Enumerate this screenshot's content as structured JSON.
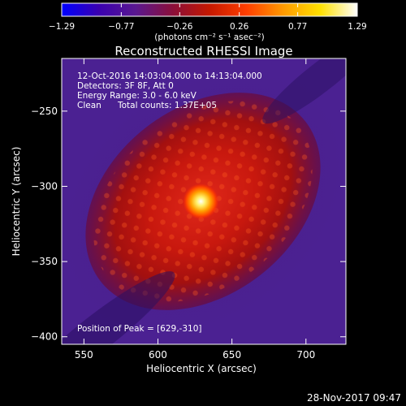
{
  "chart_data": {
    "type": "heatmap",
    "title": "Reconstructed RHESSI Image",
    "xlabel": "Heliocentric X (arcsec)",
    "ylabel": "Heliocentric Y (arcsec)",
    "xlim": [
      535,
      727
    ],
    "ylim": [
      -405,
      -215
    ],
    "x_ticks": [
      550,
      600,
      650,
      700
    ],
    "y_ticks": [
      -250,
      -300,
      -350,
      -400
    ],
    "x_tick_labels": [
      "550",
      "600",
      "650",
      "700"
    ],
    "y_tick_labels": [
      "−250",
      "−300",
      "−350",
      "−400"
    ],
    "colorbar": {
      "range": [
        -1.29,
        1.29
      ],
      "ticks": [
        -1.29,
        -0.77,
        -0.26,
        0.26,
        0.77,
        1.29
      ],
      "tick_labels": [
        "−1.29",
        "−0.77",
        "−0.26",
        "0.26",
        "0.77",
        "1.29"
      ],
      "unit_label": "(photons cm⁻² s⁻¹ asec⁻²)",
      "colors": [
        "#0000ff",
        "#3a00b0",
        "#5a1890",
        "#8a0f3a",
        "#c51800",
        "#ff3e00",
        "#ff9a00",
        "#ffe000",
        "#ffffff"
      ]
    },
    "peak": {
      "x": 629,
      "y": -310
    },
    "annotations": {
      "time_range": "12-Oct-2016 14:03:04.000 to 14:13:04.000",
      "detectors": "Detectors: 3F 8F, Att 0",
      "energy": "Energy Range: 3.0 - 6.0 keV",
      "method": "Clean",
      "counts": "Total counts: 1.37E+05",
      "peak_text": "Position of Peak = [629,-310]"
    },
    "grid": false
  },
  "footer": {
    "date": "28-Nov-2017 09:47"
  }
}
